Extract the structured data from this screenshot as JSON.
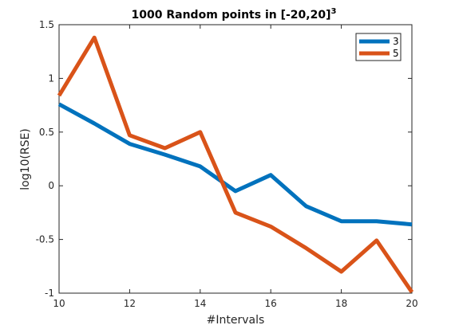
{
  "chart_data": {
    "type": "line",
    "title": "1000 Random points in [-20,20]",
    "title_superscript": "3",
    "xlabel": "#Intervals",
    "ylabel": "log10(RSE)",
    "xlim": [
      10,
      20
    ],
    "ylim": [
      -1,
      1.5
    ],
    "xticks": [
      10,
      12,
      14,
      16,
      18,
      20
    ],
    "yticks": [
      -1,
      -0.5,
      0,
      0.5,
      1,
      1.5
    ],
    "xtick_labels": [
      "10",
      "12",
      "14",
      "16",
      "18",
      "20"
    ],
    "ytick_labels": [
      "-1",
      "-0.5",
      "0",
      "0.5",
      "1",
      "1.5"
    ],
    "grid": false,
    "legend_placement": "top-right",
    "x": [
      10,
      11,
      12,
      13,
      14,
      15,
      16,
      17,
      18,
      19,
      20
    ],
    "series": [
      {
        "name": "3",
        "color": "#0072BD",
        "values": [
          0.76,
          0.58,
          0.39,
          0.29,
          0.18,
          -0.05,
          0.1,
          -0.19,
          -0.33,
          -0.33,
          -0.36
        ]
      },
      {
        "name": "5",
        "color": "#D95319",
        "values": [
          0.84,
          1.38,
          0.47,
          0.35,
          0.5,
          -0.25,
          -0.38,
          -0.58,
          -0.8,
          -0.51,
          -0.99
        ]
      }
    ]
  }
}
